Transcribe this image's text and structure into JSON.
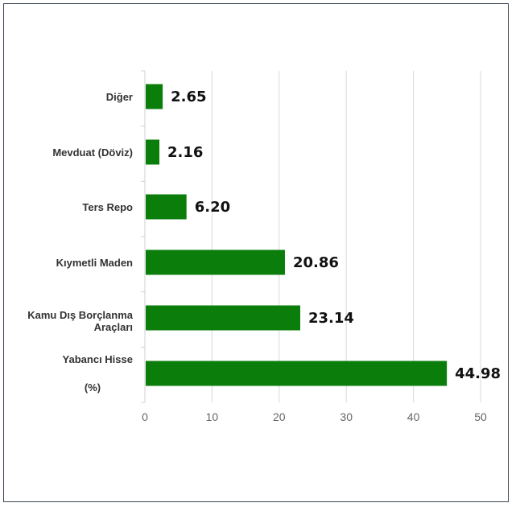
{
  "chart_data": {
    "type": "bar",
    "orientation": "horizontal",
    "categories": [
      "Diğer",
      "Mevduat (Döviz)",
      "Ters Repo",
      "Kıymetli Maden",
      "Kamu Dış Borçlanma Araçları",
      "Yabancı Hisse"
    ],
    "category_lines": [
      [
        "Diğer"
      ],
      [
        "Mevduat (Döviz)"
      ],
      [
        "Ters Repo"
      ],
      [
        "Kıymetli Maden"
      ],
      [
        "Kamu Dış Borçlanma",
        "Araçları"
      ],
      [
        "Yabancı Hisse"
      ]
    ],
    "values": [
      2.65,
      2.16,
      6.2,
      20.86,
      23.14,
      44.98
    ],
    "value_labels": [
      "2.65",
      "2.16",
      "6.20",
      "20.86",
      "23.14",
      "44.98"
    ],
    "unit_note": "(%)",
    "xlim": [
      0,
      50
    ],
    "xticks": [
      0,
      10,
      20,
      30,
      40,
      50
    ],
    "grid": "vertical",
    "bar_color": "#0a7d0a",
    "title": "",
    "xlabel": "",
    "ylabel": ""
  }
}
